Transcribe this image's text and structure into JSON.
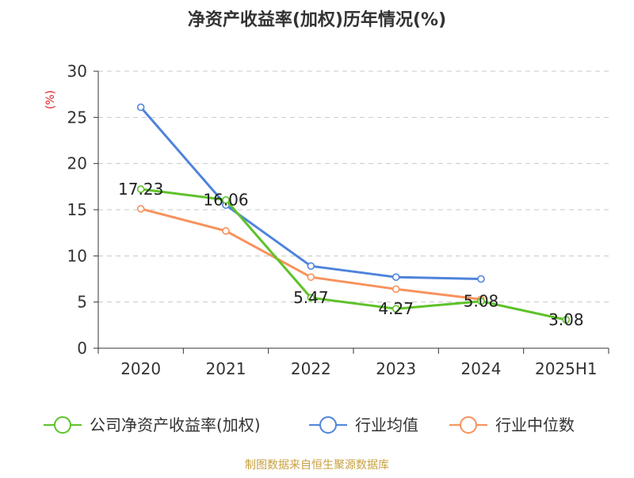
{
  "chart_data": {
    "type": "line",
    "title": "净资产收益率(加权)历年情况(%)",
    "ylabel": "(%)",
    "xlabel": "",
    "categories": [
      "2020",
      "2021",
      "2022",
      "2023",
      "2024",
      "2025H1"
    ],
    "ylim": [
      0,
      30
    ],
    "yticks": [
      0,
      5,
      10,
      15,
      20,
      25,
      30
    ],
    "grid": "horizontal-dashed",
    "legend_position": "bottom",
    "series": [
      {
        "name": "公司净资产收益率(加权)",
        "color": "#5ec22a",
        "values": [
          17.23,
          16.06,
          5.47,
          4.27,
          5.08,
          3.08
        ],
        "labels": [
          "17.23",
          "16.06",
          "5.47",
          "4.27",
          "5.08",
          "3.08"
        ]
      },
      {
        "name": "行业均值",
        "color": "#4f83dc",
        "values": [
          26.1,
          15.5,
          8.9,
          7.7,
          7.5,
          null
        ]
      },
      {
        "name": "行业中位数",
        "color": "#f7925c",
        "values": [
          15.1,
          12.7,
          7.7,
          6.4,
          5.3,
          null
        ]
      }
    ]
  },
  "footer": {
    "source": "制图数据来自恒生聚源数据库",
    "source_color": "#c8a040"
  },
  "colors": {
    "axis": "#333333",
    "grid": "#c8c8c8",
    "ylabel": "#e02020"
  }
}
